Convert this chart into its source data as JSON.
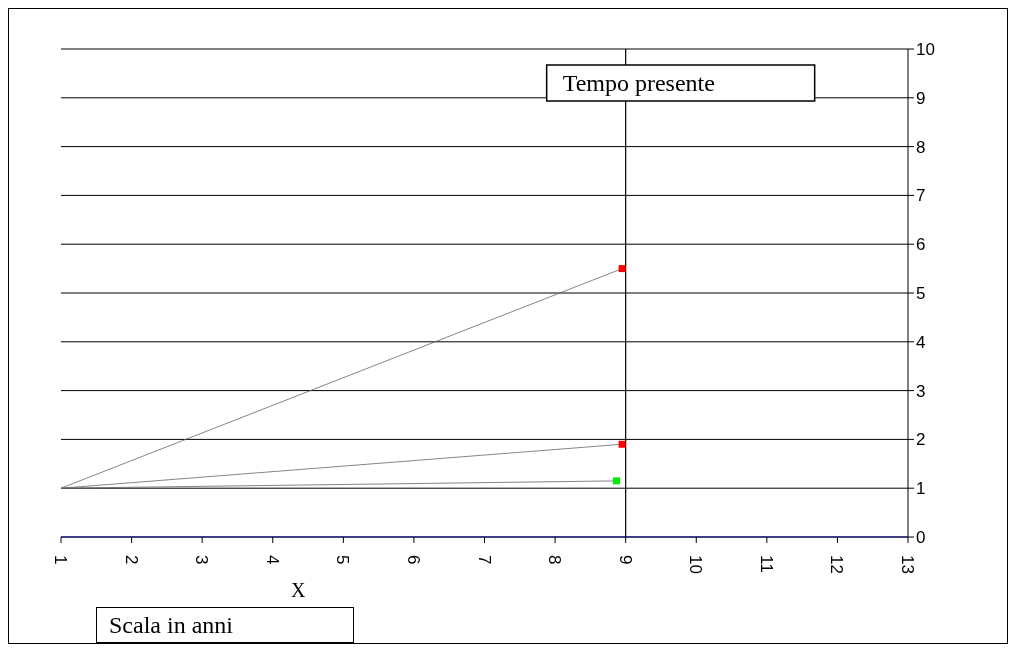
{
  "chart_data": {
    "type": "line",
    "xlabel": "X",
    "annotations": [
      "Scala in anni"
    ],
    "series": [
      {
        "color": "#666666",
        "x": [
          1,
          8.95
        ],
        "values": [
          1,
          5.5
        ],
        "colors": [
          null,
          "#ff0000"
        ]
      },
      {
        "color": "#666666",
        "x": [
          1,
          8.95
        ],
        "values": [
          1,
          1.9
        ],
        "colors": [
          null,
          "#ff0000"
        ]
      },
      {
        "color": "#666666",
        "x": [
          1,
          8.87
        ],
        "values": [
          1,
          1.15
        ],
        "colors": [
          null,
          "#00ee00"
        ]
      }
    ],
    "xlim": [
      1,
      13
    ],
    "xticks": [
      1,
      2,
      3,
      4,
      5,
      6,
      7,
      8,
      9,
      10,
      11,
      12,
      13
    ],
    "ylim": [
      0,
      10
    ],
    "yticks": [
      0,
      1,
      2,
      3,
      4,
      5,
      6,
      7,
      8,
      9,
      10
    ],
    "ref_lines": [
      {
        "axis": "x",
        "value": 9,
        "label": "Tempo presente",
        "color": "#000000"
      }
    ],
    "grid": "y",
    "marker": "square",
    "line_style": "solid"
  }
}
